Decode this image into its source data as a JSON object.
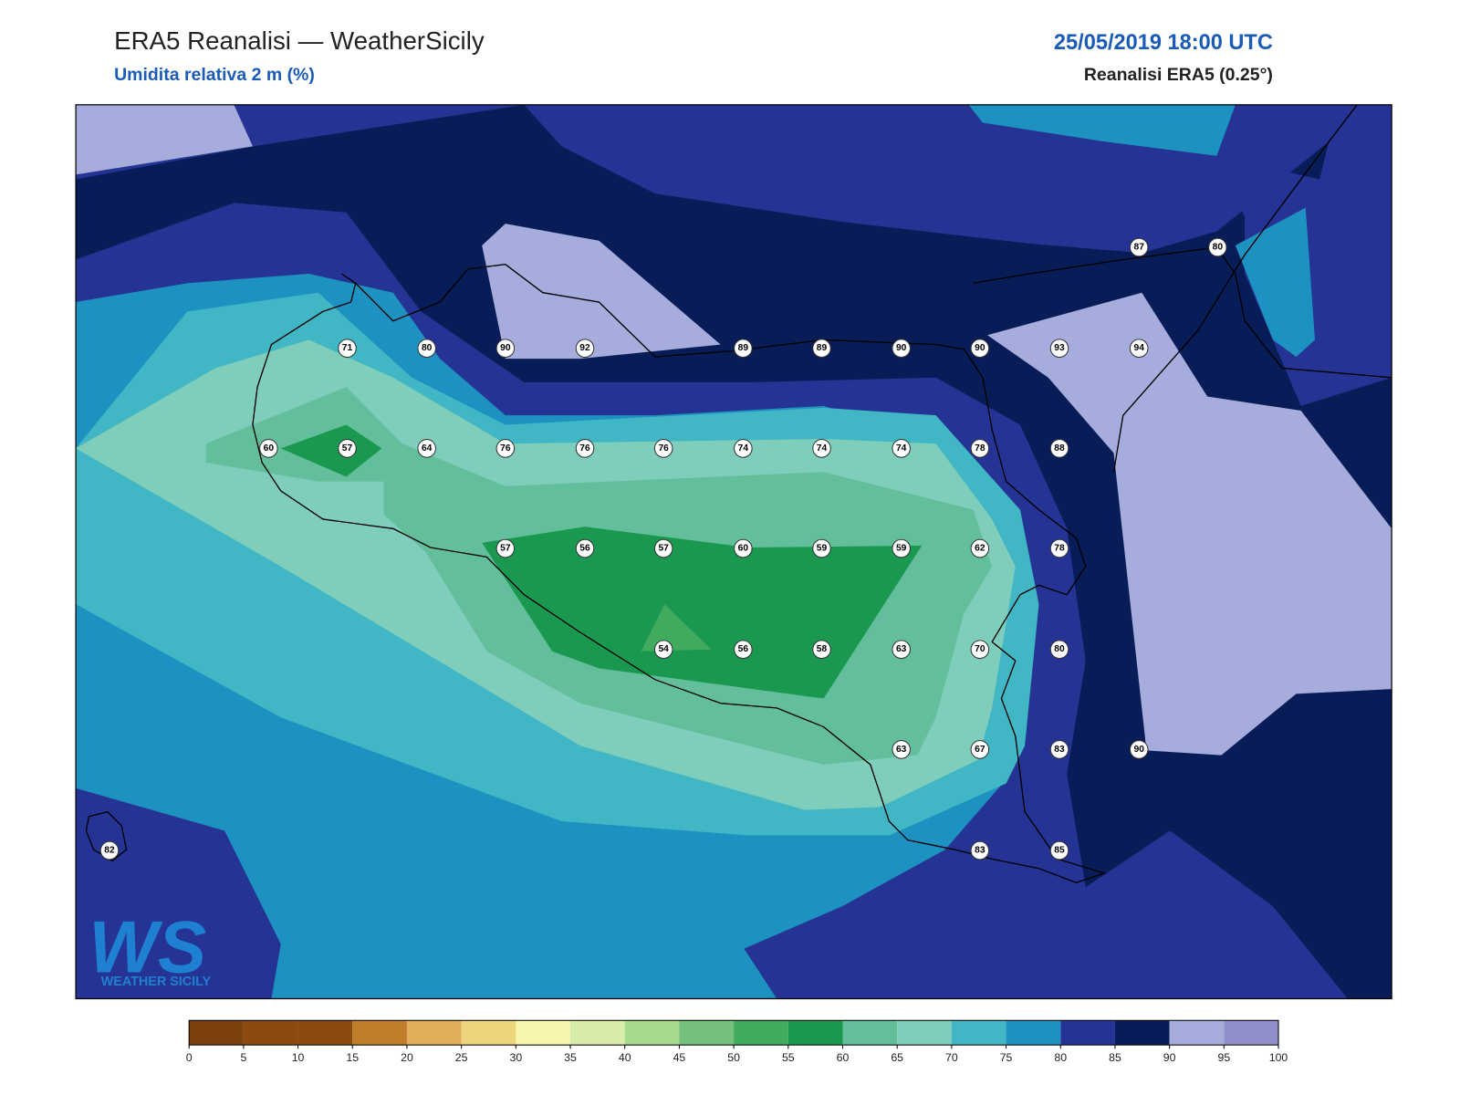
{
  "header": {
    "title": "ERA5 Reanalisi — WeatherSicily",
    "subtitle": "Umidita relativa 2 m (%)",
    "datetime": "25/05/2019 18:00 UTC",
    "source": "Reanalisi ERA5 (0.25°)"
  },
  "stations": [
    87,
    80,
    71,
    80,
    90,
    92,
    89,
    89,
    90,
    90,
    93,
    94,
    60,
    57,
    64,
    76,
    76,
    76,
    74,
    74,
    74,
    78,
    88,
    57,
    56,
    57,
    60,
    59,
    59,
    62,
    78,
    54,
    56,
    58,
    63,
    70,
    80,
    63,
    67,
    83,
    90,
    82,
    83,
    85
  ],
  "colorbar": {
    "ticks": [
      0,
      5,
      10,
      15,
      20,
      25,
      30,
      35,
      40,
      45,
      50,
      55,
      60,
      65,
      70,
      75,
      80,
      85,
      90,
      95,
      100
    ],
    "colors": [
      "#7b400b",
      "#8c4a0e",
      "#8c4a0e",
      "#c07e2a",
      "#dfae5a",
      "#efd47e",
      "#f6f6ac",
      "#d8ecaa",
      "#a8da8e",
      "#75c07a",
      "#41ab5d",
      "#1b9850",
      "#63bf9b",
      "#7fcdbb",
      "#41b6c4",
      "#1d91c0",
      "#253494",
      "#081d58",
      "#a6acdc",
      "#8f8fca"
    ]
  },
  "logo": {
    "letters": "WS",
    "text": "WEATHER SICILY"
  }
}
